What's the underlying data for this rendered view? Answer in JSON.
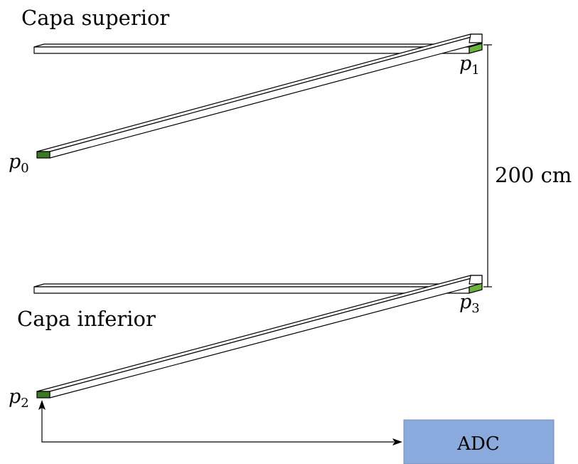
{
  "labels": {
    "top_layer": "Capa superior",
    "bottom_layer": "Capa inferior",
    "distance": "200 cm",
    "p0": {
      "base": "p",
      "sub": "0"
    },
    "p1": {
      "base": "p",
      "sub": "1"
    },
    "p2": {
      "base": "p",
      "sub": "2"
    },
    "p3": {
      "base": "p",
      "sub": "3"
    },
    "adc": "ADC"
  },
  "colors": {
    "photomultiplier_dark": "#3a7a22",
    "photomultiplier_light": "#6ab43e",
    "adc_fill": "#8aa9dc"
  }
}
